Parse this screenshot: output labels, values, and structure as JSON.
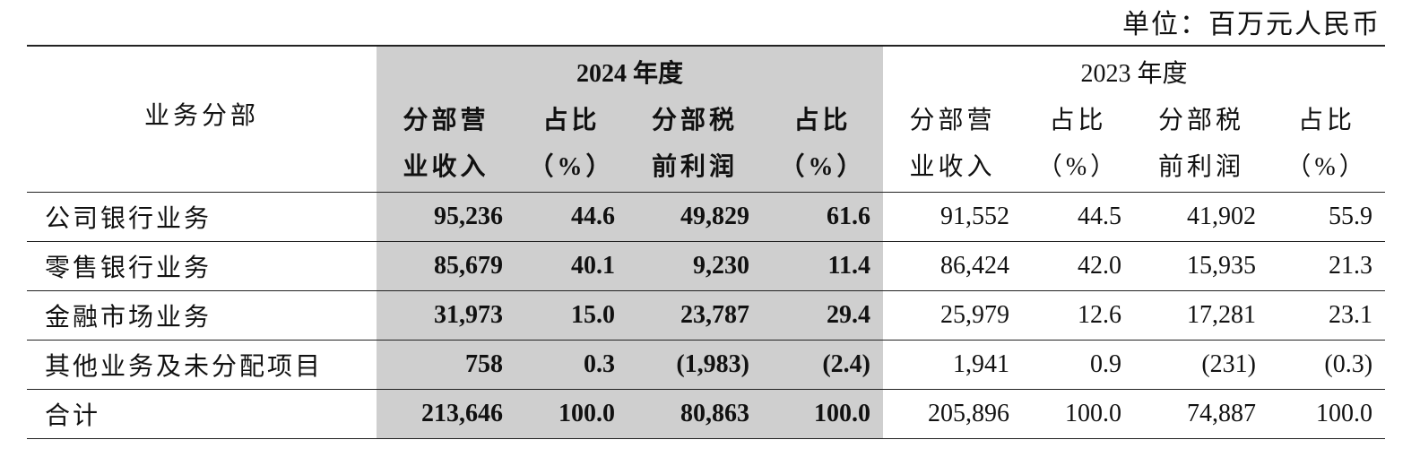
{
  "unit": "单位：百万元人民币",
  "table": {
    "row_header": "业务分部",
    "groups": [
      {
        "label": "2024 年度",
        "columns": [
          [
            "分部营",
            "业收入"
          ],
          [
            "占比",
            "（%）"
          ],
          [
            "分部税",
            "前利润"
          ],
          [
            "占比",
            "（%）"
          ]
        ]
      },
      {
        "label": "2023 年度",
        "columns": [
          [
            "分部营",
            "业收入"
          ],
          [
            "占比",
            "（%）"
          ],
          [
            "分部税",
            "前利润"
          ],
          [
            "占比",
            "（%）"
          ]
        ]
      }
    ],
    "rows": [
      [
        "公司银行业务",
        "95,236",
        "44.6",
        "49,829",
        "61.6",
        "91,552",
        "44.5",
        "41,902",
        "55.9"
      ],
      [
        "零售银行业务",
        "85,679",
        "40.1",
        "9,230",
        "11.4",
        "86,424",
        "42.0",
        "15,935",
        "21.3"
      ],
      [
        "金融市场业务",
        "31,973",
        "15.0",
        "23,787",
        "29.4",
        "25,979",
        "12.6",
        "17,281",
        "23.1"
      ],
      [
        "其他业务及未分配项目",
        "758",
        "0.3",
        "(1,983)",
        "(2.4)",
        "1,941",
        "0.9",
        "(231)",
        "(0.3)"
      ],
      [
        "合计",
        "213,646",
        "100.0",
        "80,863",
        "100.0",
        "205,896",
        "100.0",
        "74,887",
        "100.0"
      ]
    ]
  }
}
